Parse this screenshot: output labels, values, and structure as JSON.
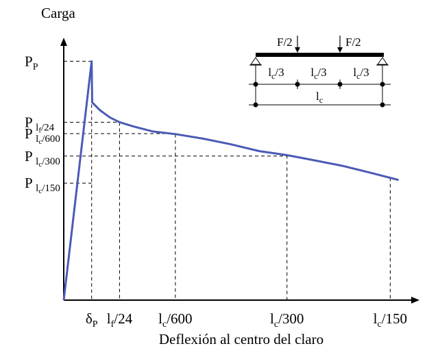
{
  "chart_data": {
    "type": "line",
    "title": "",
    "ylabel": "Carga",
    "xlabel": "Deflexión al centro del claro",
    "series": [
      {
        "color": "#4a5ab5",
        "points": [
          {
            "x": 0,
            "y": 0
          },
          {
            "x": 1.0,
            "y": 1.0
          },
          {
            "x": 1.02,
            "y": 0.828
          },
          {
            "x": 1.3,
            "y": 0.795
          },
          {
            "x": 1.65,
            "y": 0.765
          },
          {
            "x": 2.0,
            "y": 0.745
          },
          {
            "x": 2.5,
            "y": 0.727
          },
          {
            "x": 3.2,
            "y": 0.706
          },
          {
            "x": 4.0,
            "y": 0.695
          },
          {
            "x": 5.0,
            "y": 0.676
          },
          {
            "x": 6.0,
            "y": 0.652
          },
          {
            "x": 7.0,
            "y": 0.624
          },
          {
            "x": 8.0,
            "y": 0.607
          },
          {
            "x": 9.0,
            "y": 0.585
          },
          {
            "x": 10.0,
            "y": 0.562
          },
          {
            "x": 11.0,
            "y": 0.533
          },
          {
            "x": 11.7,
            "y": 0.512
          },
          {
            "x": 12.0,
            "y": 0.503
          }
        ]
      }
    ],
    "y_ticks": [
      {
        "value": 1.0,
        "main": "P",
        "sub": "P"
      },
      {
        "value": 0.745,
        "main": "P ",
        "sub": "l",
        "sub2": "f",
        "sub3": "/24"
      },
      {
        "value": 0.697,
        "main": "P ",
        "sub": "l",
        "sub2": "c",
        "sub3": "/600"
      },
      {
        "value": 0.603,
        "main": "P ",
        "sub": "l",
        "sub2": "c",
        "sub3": "/300"
      },
      {
        "value": 0.49,
        "main": "P ",
        "sub": "l",
        "sub2": "c",
        "sub3": "/150"
      }
    ],
    "x_ticks": [
      {
        "value": 1.0,
        "main": "δ",
        "sub": "P",
        "tail": ""
      },
      {
        "value": 2.0,
        "main": "l",
        "sub": "f",
        "tail": "/24"
      },
      {
        "value": 4.0,
        "main": "l",
        "sub": "c",
        "tail": "/600"
      },
      {
        "value": 8.0,
        "main": "l",
        "sub": "c",
        "tail": "/300"
      },
      {
        "value": 11.7,
        "main": "l",
        "sub": "c",
        "tail": "/150"
      }
    ],
    "xlim": [
      0,
      12.6
    ],
    "ylim": [
      0,
      1.05
    ]
  },
  "inset": {
    "load_left": "F/2",
    "load_right": "F/2",
    "segments": [
      {
        "main": "l",
        "sub": "c",
        "tail": "/3"
      },
      {
        "main": "l",
        "sub": "c",
        "tail": "/3"
      },
      {
        "main": "l",
        "sub": "c",
        "tail": "/3"
      }
    ],
    "span": {
      "main": "l",
      "sub": "c"
    }
  }
}
